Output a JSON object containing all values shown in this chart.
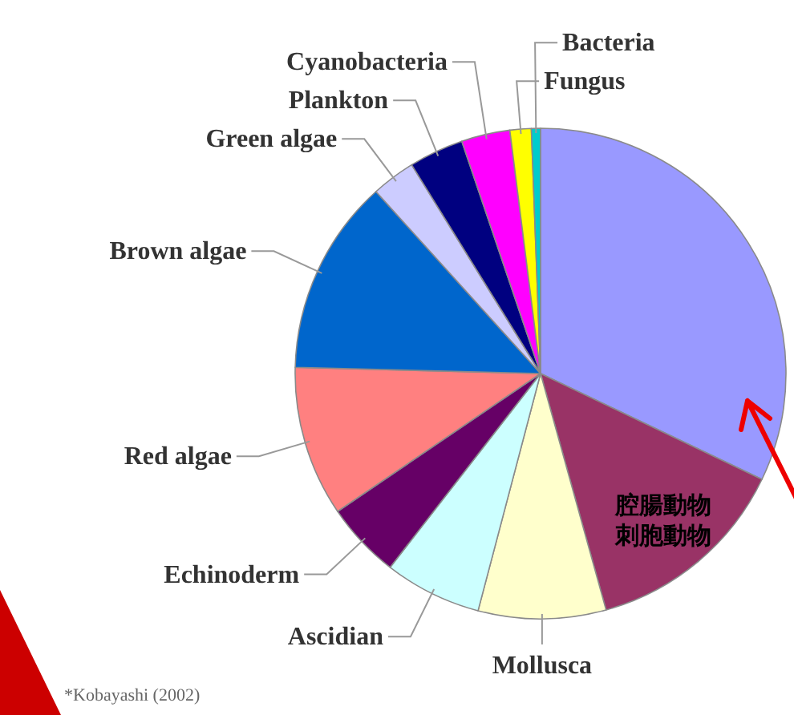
{
  "chart_data": {
    "type": "pie",
    "categories": [
      null,
      "腔腸動物刺胞動物",
      "Mollusca",
      "Ascidian",
      "Echinoderm",
      "Red algae",
      "Brown algae",
      "Green algae",
      "Plankton",
      "Cyanobacteria",
      "Fungus",
      "Bacteria"
    ],
    "values": [
      32.1,
      13.6,
      8.4,
      6.4,
      5,
      9.9,
      12.9,
      2.9,
      3.6,
      3.2,
      1.4,
      0.6
    ],
    "colors": [
      "#9999ff",
      "#993366",
      "#ffffcc",
      "#ccffff",
      "#660066",
      "#ff8080",
      "#0066cc",
      "#ccccff",
      "#000080",
      "#ff00ff",
      "#ffff00",
      "#00cccc"
    ],
    "annotations": [
      "*Kobayashi (2002)"
    ]
  }
}
